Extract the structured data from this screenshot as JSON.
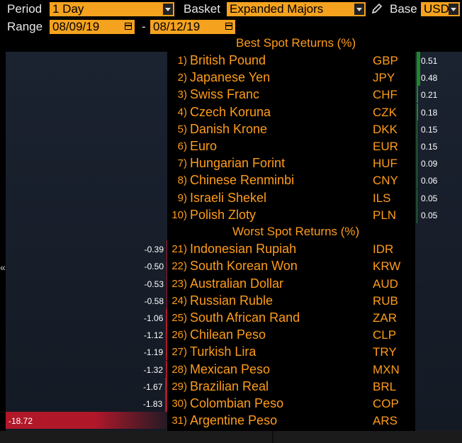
{
  "toolbar": {
    "period_label": "Period",
    "period_value": "1 Day",
    "basket_label": "Basket",
    "basket_value": "Expanded Majors",
    "base_label": "Base",
    "base_value": "USD",
    "range_label": "Range",
    "date_from": "08/09/19",
    "date_sep": "-",
    "date_to": "08/12/19",
    "pencil_icon": "pencil-icon",
    "calendar_icon": "calendar-icon"
  },
  "best": {
    "title": "Best Spot Returns (%)",
    "rows": [
      {
        "rank": "1)",
        "name": "British Pound",
        "code": "GBP",
        "value": "0.51"
      },
      {
        "rank": "2)",
        "name": "Japanese Yen",
        "code": "JPY",
        "value": "0.48"
      },
      {
        "rank": "3)",
        "name": "Swiss Franc",
        "code": "CHF",
        "value": "0.21"
      },
      {
        "rank": "4)",
        "name": "Czech Koruna",
        "code": "CZK",
        "value": "0.18"
      },
      {
        "rank": "5)",
        "name": "Danish Krone",
        "code": "DKK",
        "value": "0.15"
      },
      {
        "rank": "6)",
        "name": "Euro",
        "code": "EUR",
        "value": "0.15"
      },
      {
        "rank": "7)",
        "name": "Hungarian Forint",
        "code": "HUF",
        "value": "0.09"
      },
      {
        "rank": "8)",
        "name": "Chinese Renminbi",
        "code": "CNY",
        "value": "0.06"
      },
      {
        "rank": "9)",
        "name": "Israeli Shekel",
        "code": "ILS",
        "value": "0.05"
      },
      {
        "rank": "10)",
        "name": "Polish Zloty",
        "code": "PLN",
        "value": "0.05"
      }
    ]
  },
  "worst": {
    "title": "Worst Spot Returns (%)",
    "rows": [
      {
        "rank": "21)",
        "name": "Indonesian Rupiah",
        "code": "IDR",
        "value": "-0.39"
      },
      {
        "rank": "22)",
        "name": "South Korean Won",
        "code": "KRW",
        "value": "-0.50"
      },
      {
        "rank": "23)",
        "name": "Australian Dollar",
        "code": "AUD",
        "value": "-0.53"
      },
      {
        "rank": "24)",
        "name": "Russian Ruble",
        "code": "RUB",
        "value": "-0.58"
      },
      {
        "rank": "25)",
        "name": "South African Rand",
        "code": "ZAR",
        "value": "-1.06"
      },
      {
        "rank": "26)",
        "name": "Chilean Peso",
        "code": "CLP",
        "value": "-1.12"
      },
      {
        "rank": "27)",
        "name": "Turkish Lira",
        "code": "TRY",
        "value": "-1.19"
      },
      {
        "rank": "28)",
        "name": "Mexican Peso",
        "code": "MXN",
        "value": "-1.32"
      },
      {
        "rank": "29)",
        "name": "Brazilian Real",
        "code": "BRL",
        "value": "-1.67"
      },
      {
        "rank": "30)",
        "name": "Colombian Peso",
        "code": "COP",
        "value": "-1.83"
      },
      {
        "rank": "31)",
        "name": "Argentine Peso",
        "code": "ARS",
        "value": "-18.72"
      }
    ]
  },
  "colors": {
    "accent": "#ff9c1a",
    "field_bg": "#f5a21f",
    "positive_bar": "#1d8a2a",
    "negative_bar": "#b0182a"
  },
  "chevron": "«"
}
